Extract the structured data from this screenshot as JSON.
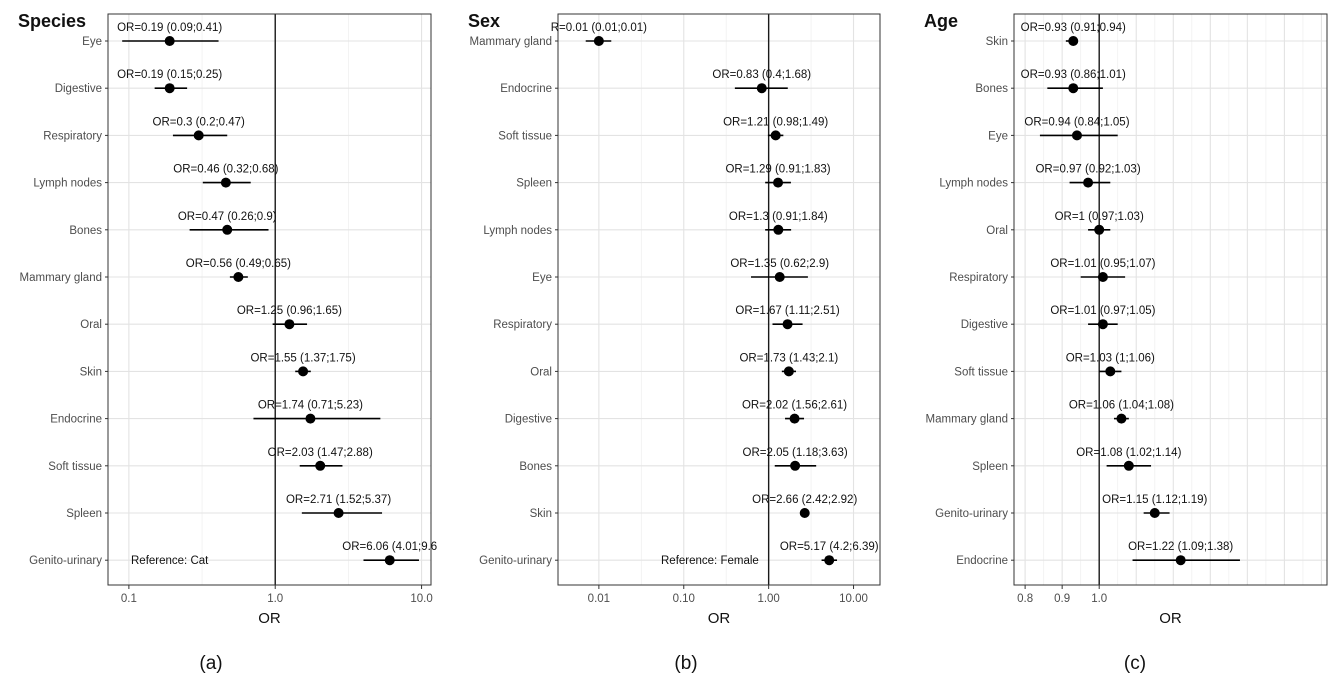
{
  "chart_data": [
    {
      "type": "forest",
      "title": "Species",
      "caption": "(a)",
      "xlabel": "OR",
      "scale": "log",
      "xlim": [
        0.072,
        11.6
      ],
      "xticks": [
        0.1,
        1.0,
        10.0
      ],
      "xtick_labels": [
        "0.1",
        "1.0",
        "10.0"
      ],
      "reference_line": 1,
      "reference_label": "Reference: Cat",
      "grid": true,
      "rows": [
        {
          "category": "Eye",
          "or": 0.19,
          "lo": 0.09,
          "hi": 0.41,
          "label": "OR=0.19 (0.09;0.41)"
        },
        {
          "category": "Digestive",
          "or": 0.19,
          "lo": 0.15,
          "hi": 0.25,
          "label": "OR=0.19 (0.15;0.25)"
        },
        {
          "category": "Respiratory",
          "or": 0.3,
          "lo": 0.2,
          "hi": 0.47,
          "label": "OR=0.3 (0.2;0.47)"
        },
        {
          "category": "Lymph nodes",
          "or": 0.46,
          "lo": 0.32,
          "hi": 0.68,
          "label": "OR=0.46 (0.32;0.68)"
        },
        {
          "category": "Bones",
          "or": 0.47,
          "lo": 0.26,
          "hi": 0.9,
          "label": "OR=0.47 (0.26;0.9)"
        },
        {
          "category": "Mammary gland",
          "or": 0.56,
          "lo": 0.49,
          "hi": 0.65,
          "label": "OR=0.56 (0.49;0.65)"
        },
        {
          "category": "Oral",
          "or": 1.25,
          "lo": 0.96,
          "hi": 1.65,
          "label": "OR=1.25 (0.96;1.65)"
        },
        {
          "category": "Skin",
          "or": 1.55,
          "lo": 1.37,
          "hi": 1.75,
          "label": "OR=1.55 (1.37;1.75)"
        },
        {
          "category": "Endocrine",
          "or": 1.74,
          "lo": 0.71,
          "hi": 5.23,
          "label": "OR=1.74 (0.71;5.23)"
        },
        {
          "category": "Soft tissue",
          "or": 2.03,
          "lo": 1.47,
          "hi": 2.88,
          "label": "OR=2.03 (1.47;2.88)"
        },
        {
          "category": "Spleen",
          "or": 2.71,
          "lo": 1.52,
          "hi": 5.37,
          "label": "OR=2.71 (1.52;5.37)"
        },
        {
          "category": "Genito-urinary",
          "or": 6.06,
          "lo": 4.01,
          "hi": 9.6,
          "label": "OR=6.06 (4.01;9.6"
        }
      ]
    },
    {
      "type": "forest",
      "title": "Sex",
      "caption": "(b)",
      "xlabel": "OR",
      "scale": "log",
      "xlim": [
        0.0033,
        20.5
      ],
      "xticks": [
        0.01,
        0.1,
        1,
        10
      ],
      "xtick_labels": [
        "0.01",
        "0.10",
        "1.00",
        "10.00"
      ],
      "reference_line": 1,
      "reference_label": "Reference: Female",
      "grid": true,
      "rows": [
        {
          "category": "Mammary gland",
          "or": 0.01,
          "lo": 0.007,
          "hi": 0.014,
          "label": "R=0.01 (0.01;0.01)"
        },
        {
          "category": "Endocrine",
          "or": 0.83,
          "lo": 0.4,
          "hi": 1.68,
          "label": "OR=0.83 (0.4;1.68)"
        },
        {
          "category": "Soft tissue",
          "or": 1.21,
          "lo": 0.98,
          "hi": 1.49,
          "label": "OR=1.21 (0.98;1.49)"
        },
        {
          "category": "Spleen",
          "or": 1.29,
          "lo": 0.91,
          "hi": 1.83,
          "label": "OR=1.29 (0.91;1.83)"
        },
        {
          "category": "Lymph nodes",
          "or": 1.3,
          "lo": 0.91,
          "hi": 1.84,
          "label": "OR=1.3 (0.91;1.84)"
        },
        {
          "category": "Eye",
          "or": 1.35,
          "lo": 0.62,
          "hi": 2.9,
          "label": "OR=1.35 (0.62;2.9)"
        },
        {
          "category": "Respiratory",
          "or": 1.67,
          "lo": 1.11,
          "hi": 2.51,
          "label": "OR=1.67 (1.11;2.51)"
        },
        {
          "category": "Oral",
          "or": 1.73,
          "lo": 1.43,
          "hi": 2.1,
          "label": "OR=1.73 (1.43;2.1)"
        },
        {
          "category": "Digestive",
          "or": 2.02,
          "lo": 1.56,
          "hi": 2.61,
          "label": "OR=2.02 (1.56;2.61)"
        },
        {
          "category": "Bones",
          "or": 2.05,
          "lo": 1.18,
          "hi": 3.63,
          "label": "OR=2.05 (1.18;3.63)"
        },
        {
          "category": "Skin",
          "or": 2.66,
          "lo": 2.42,
          "hi": 2.92,
          "label": "OR=2.66 (2.42;2.92)"
        },
        {
          "category": "Genito-urinary",
          "or": 5.17,
          "lo": 4.2,
          "hi": 6.39,
          "label": "OR=5.17 (4.2;6.39)"
        }
      ]
    },
    {
      "type": "forest",
      "title": "Age",
      "caption": "(c)",
      "xlabel": "OR",
      "scale": "linear",
      "xlim": [
        0.77,
        1.615
      ],
      "xticks": [
        0.8,
        0.9,
        1.0
      ],
      "xtick_labels": [
        "0.8",
        "0.9",
        "1.0"
      ],
      "reference_line": 1,
      "grid": true,
      "rows": [
        {
          "category": "Skin",
          "or": 0.93,
          "lo": 0.91,
          "hi": 0.94,
          "label": "OR=0.93 (0.91;0.94)"
        },
        {
          "category": "Bones",
          "or": 0.93,
          "lo": 0.86,
          "hi": 1.01,
          "label": "OR=0.93 (0.86;1.01)"
        },
        {
          "category": "Eye",
          "or": 0.94,
          "lo": 0.84,
          "hi": 1.05,
          "label": "OR=0.94 (0.84;1.05)"
        },
        {
          "category": "Lymph nodes",
          "or": 0.97,
          "lo": 0.92,
          "hi": 1.03,
          "label": "OR=0.97 (0.92;1.03)"
        },
        {
          "category": "Oral",
          "or": 1.0,
          "lo": 0.97,
          "hi": 1.03,
          "label": "OR=1 (0.97;1.03)"
        },
        {
          "category": "Respiratory",
          "or": 1.01,
          "lo": 0.95,
          "hi": 1.07,
          "label": "OR=1.01 (0.95;1.07)"
        },
        {
          "category": "Digestive",
          "or": 1.01,
          "lo": 0.97,
          "hi": 1.05,
          "label": "OR=1.01 (0.97;1.05)"
        },
        {
          "category": "Soft tissue",
          "or": 1.03,
          "lo": 1.0,
          "hi": 1.06,
          "label": "OR=1.03 (1;1.06)"
        },
        {
          "category": "Mammary gland",
          "or": 1.06,
          "lo": 1.04,
          "hi": 1.08,
          "label": "OR=1.06 (1.04;1.08)"
        },
        {
          "category": "Spleen",
          "or": 1.08,
          "lo": 1.02,
          "hi": 1.14,
          "label": "OR=1.08 (1.02;1.14)"
        },
        {
          "category": "Genito-urinary",
          "or": 1.15,
          "lo": 1.12,
          "hi": 1.19,
          "label": "OR=1.15 (1.12;1.19)"
        },
        {
          "category": "Endocrine",
          "or": 1.22,
          "lo": 1.09,
          "hi": 1.38,
          "label": "OR=1.22 (1.09;1.38)"
        }
      ]
    }
  ]
}
